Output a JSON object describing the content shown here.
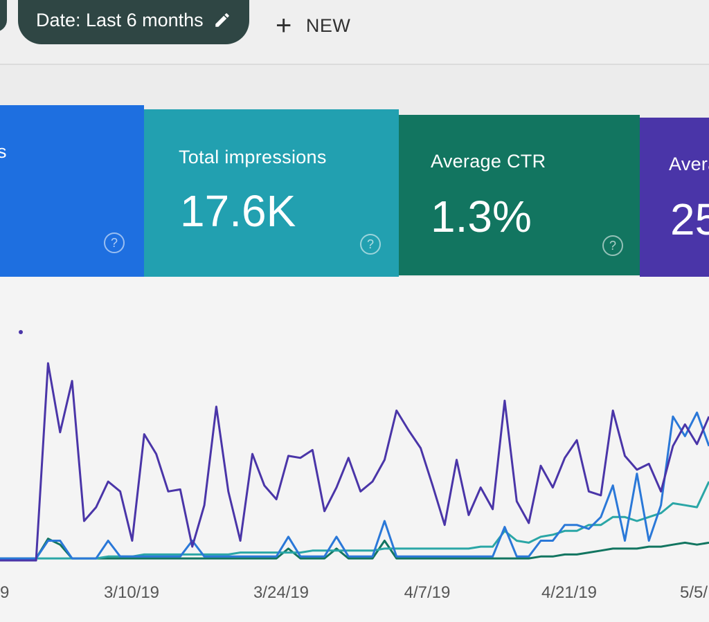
{
  "toolbar": {
    "date_filter_label": "Date: Last 6 months",
    "new_label": "NEW"
  },
  "cards": {
    "clicks": {
      "label": "s",
      "value": ""
    },
    "impressions": {
      "label": "Total impressions",
      "value": "17.6K"
    },
    "ctr": {
      "label": "Average CTR",
      "value": "1.3%"
    },
    "position": {
      "label": "Avera",
      "value": "25"
    }
  },
  "colors": {
    "clicks": "#1e6fe0",
    "impressions": "#22a0b0",
    "ctr": "#127560",
    "position": "#4a35a8",
    "toolbar_chip": "#2f4644"
  },
  "chart_data": {
    "type": "line",
    "x_ticks": [
      "9",
      "3/10/19",
      "3/24/19",
      "4/7/19",
      "4/21/19",
      "5/5/"
    ],
    "ylim": [
      0,
      100
    ],
    "grid": false,
    "series": [
      {
        "color": "#4a35a8",
        "values": [
          0,
          0,
          0,
          0,
          100,
          65,
          91,
          20,
          27,
          40,
          35,
          10,
          64,
          54,
          35,
          36,
          7,
          28,
          78,
          35,
          10,
          54,
          38,
          31,
          53,
          52,
          56,
          25,
          37,
          52,
          35,
          40,
          51,
          76,
          66,
          57,
          38,
          18,
          51,
          23,
          37,
          26,
          81,
          30,
          19,
          48,
          37,
          52,
          61,
          35,
          33,
          76,
          53,
          46,
          49,
          35,
          58,
          69,
          59,
          73
        ]
      },
      {
        "color": "#2a78d8",
        "values": [
          1,
          1,
          1,
          1,
          10,
          10,
          1,
          1,
          1,
          10,
          2,
          2,
          2,
          2,
          2,
          2,
          10,
          2,
          2,
          2,
          2,
          2,
          2,
          2,
          12,
          2,
          2,
          2,
          12,
          2,
          2,
          2,
          20,
          2,
          2,
          2,
          2,
          2,
          2,
          2,
          2,
          2,
          17,
          2,
          2,
          10,
          10,
          18,
          18,
          16,
          22,
          38,
          10,
          44,
          10,
          28,
          73,
          63,
          75,
          58
        ]
      },
      {
        "color": "#2aa6a6",
        "values": [
          1,
          1,
          1,
          1,
          1,
          1,
          1,
          1,
          1,
          2,
          2,
          2,
          3,
          3,
          3,
          3,
          3,
          3,
          3,
          3,
          4,
          4,
          4,
          4,
          4,
          4,
          5,
          5,
          5,
          5,
          5,
          5,
          6,
          6,
          6,
          6,
          6,
          6,
          6,
          6,
          7,
          7,
          15,
          10,
          9,
          12,
          13,
          15,
          15,
          18,
          18,
          22,
          22,
          20,
          22,
          24,
          29,
          28,
          27,
          40
        ]
      },
      {
        "color": "#127560",
        "values": [
          1,
          1,
          1,
          1,
          11,
          8,
          1,
          1,
          1,
          1,
          1,
          1,
          1,
          1,
          1,
          1,
          1,
          1,
          1,
          1,
          1,
          1,
          1,
          1,
          6,
          1,
          1,
          1,
          6,
          1,
          1,
          1,
          10,
          1,
          1,
          1,
          1,
          1,
          1,
          1,
          1,
          1,
          1,
          1,
          1,
          2,
          2,
          3,
          3,
          4,
          5,
          6,
          6,
          6,
          7,
          7,
          8,
          9,
          8,
          9
        ]
      }
    ]
  }
}
